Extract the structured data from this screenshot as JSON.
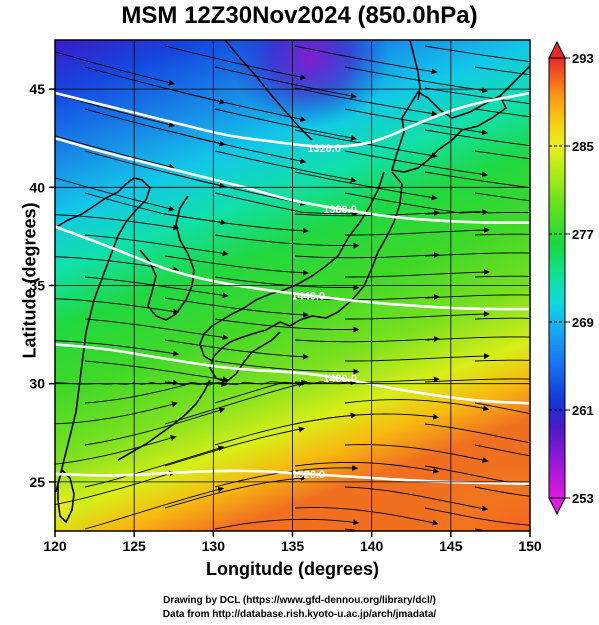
{
  "title": "MSM 12Z30Nov2024 (850.0hPa)",
  "xaxis": {
    "label": "Longitude (degrees)",
    "range": [
      120,
      150
    ],
    "ticks": [
      {
        "value": 120,
        "label": "120"
      },
      {
        "value": 125,
        "label": "125"
      },
      {
        "value": 130,
        "label": "130"
      },
      {
        "value": 135,
        "label": "135"
      },
      {
        "value": 140,
        "label": "140"
      },
      {
        "value": 145,
        "label": "145"
      },
      {
        "value": 150,
        "label": "150"
      }
    ]
  },
  "yaxis": {
    "label": "Latitude  (degrees)",
    "range": [
      22.5,
      47.5
    ],
    "ticks": [
      {
        "value": 25,
        "label": "25"
      },
      {
        "value": 30,
        "label": "30"
      },
      {
        "value": 35,
        "label": "35"
      },
      {
        "value": 40,
        "label": "40"
      },
      {
        "value": 45,
        "label": "45"
      }
    ]
  },
  "colorbar": {
    "range": [
      253,
      293
    ],
    "ticks": [
      {
        "value": 253,
        "label": "253"
      },
      {
        "value": 261,
        "label": "261"
      },
      {
        "value": 269,
        "label": "269"
      },
      {
        "value": 277,
        "label": "277"
      },
      {
        "value": 285,
        "label": "285"
      },
      {
        "value": 293,
        "label": "293"
      }
    ],
    "colors": [
      "#e11ae0",
      "#9a18d8",
      "#4a1ac8",
      "#1236d6",
      "#1a6ff0",
      "#18a8f0",
      "#10d8e0",
      "#10e0a0",
      "#18d838",
      "#60e020",
      "#b0ea18",
      "#eef020",
      "#f8c810",
      "#f89018",
      "#f05820",
      "#e82828"
    ]
  },
  "contours": [
    {
      "label": "1320.0",
      "points": [
        [
          120,
          44.8
        ],
        [
          124,
          44.0
        ],
        [
          128,
          43.2
        ],
        [
          131,
          42.6
        ],
        [
          134,
          42.3
        ],
        [
          137,
          42.0
        ],
        [
          140,
          42.2
        ],
        [
          143,
          43.3
        ],
        [
          146,
          44.2
        ],
        [
          150,
          44.8
        ]
      ]
    },
    {
      "label": "1380.0",
      "points": [
        [
          120,
          42.5
        ],
        [
          123,
          41.8
        ],
        [
          126,
          41.2
        ],
        [
          129,
          40.6
        ],
        [
          132,
          40.0
        ],
        [
          135,
          39.3
        ],
        [
          138,
          38.9
        ],
        [
          141,
          38.5
        ],
        [
          144,
          38.3
        ],
        [
          147,
          38.2
        ],
        [
          150,
          38.2
        ]
      ]
    },
    {
      "label": "1440.0",
      "points": [
        [
          120,
          38.0
        ],
        [
          124,
          36.8
        ],
        [
          127,
          35.8
        ],
        [
          130,
          35.2
        ],
        [
          133,
          34.8
        ],
        [
          136,
          34.5
        ],
        [
          139,
          34.2
        ],
        [
          142,
          34.0
        ],
        [
          146,
          33.8
        ],
        [
          150,
          33.8
        ]
      ]
    },
    {
      "label": "1480.0",
      "points": [
        [
          120,
          32.0
        ],
        [
          123,
          31.8
        ],
        [
          126,
          31.4
        ],
        [
          129,
          31.0
        ],
        [
          132,
          30.7
        ],
        [
          135,
          30.6
        ],
        [
          138,
          30.3
        ],
        [
          141,
          29.8
        ],
        [
          144,
          29.4
        ],
        [
          147,
          29.1
        ],
        [
          150,
          29.0
        ]
      ]
    },
    {
      "label": "1520.0",
      "points": [
        [
          120,
          25.4
        ],
        [
          124,
          25.3
        ],
        [
          128,
          25.5
        ],
        [
          132,
          25.6
        ],
        [
          136,
          25.4
        ],
        [
          140,
          25.2
        ],
        [
          144,
          25.0
        ],
        [
          150,
          24.9
        ]
      ]
    }
  ],
  "credits": {
    "line1": "Drawing by DCL (https://www.gfd-dennou.org/library/dcl/)",
    "line2": "Data from http://database.rish.kyoto-u.ac.jp/arch/jmadata/"
  }
}
